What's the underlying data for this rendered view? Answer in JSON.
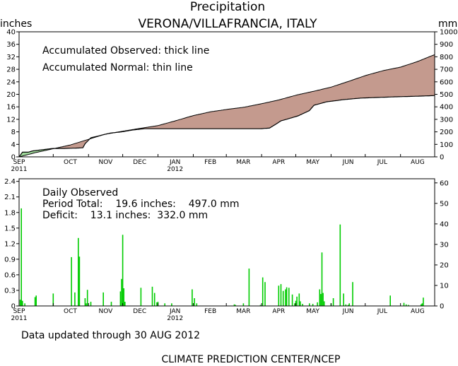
{
  "header": {
    "title": "Precipitation",
    "subtitle": "VERONA/VILLAFRANCIA, ITALY",
    "left_unit": "inches",
    "right_unit": "mm"
  },
  "annotations": {
    "accum_observed": "Accumulated Observed: thick line",
    "accum_normal": "Accumulated Normal: thin line",
    "daily_observed": "Daily Observed",
    "period_total": "Period Total:    19.6 inches:    497.0 mm",
    "deficit": "Deficit:    13.1 inches:  332.0 mm"
  },
  "footer": {
    "updated": "Data updated through 30 AUG 2012",
    "credit": "CLIMATE PREDICTION CENTER/NCEP"
  },
  "colors": {
    "deficit_fill": "#c49a8e",
    "surplus_fill": "#9fd89a",
    "daily_bar": "#00cc00",
    "axis": "#000000"
  },
  "chart_data": [
    {
      "type": "area",
      "title": "Precipitation",
      "subtitle": "VERONA/VILLAFRANCIA, ITALY",
      "ylabel": "inches",
      "y2label": "mm",
      "ylim": [
        0,
        40
      ],
      "y2lim": [
        0,
        1000
      ],
      "yticks": [
        "0",
        "4",
        "8",
        "12",
        "16",
        "20",
        "24",
        "28",
        "32",
        "36",
        "40"
      ],
      "y2ticks": [
        "0",
        "100",
        "200",
        "300",
        "400",
        "500",
        "600",
        "700",
        "800",
        "900",
        "1000"
      ],
      "month_labels": [
        "SEP",
        "OCT",
        "NOV",
        "DEC",
        "JAN",
        "FEB",
        "MAR",
        "APR",
        "MAY",
        "JUN",
        "JUL",
        "AUG"
      ],
      "year_labels": [
        {
          "month_index": 0,
          "text": "2011"
        },
        {
          "month_index": 4,
          "text": "2012"
        }
      ],
      "grid": false,
      "series": [
        {
          "name": "Accumulated Observed",
          "x_day": [
            0,
            3,
            8,
            12,
            30,
            40,
            50,
            56,
            58,
            63,
            80,
            90,
            100,
            110,
            120,
            150,
            180,
            199,
            212,
            220,
            230,
            245,
            255,
            259,
            270,
            285,
            300,
            315,
            330,
            350,
            365
          ],
          "values": [
            0.0,
            1.5,
            1.5,
            1.9,
            2.7,
            2.7,
            2.8,
            2.9,
            4.2,
            6.1,
            7.6,
            8.0,
            8.6,
            9.0,
            9.0,
            9.0,
            9.0,
            9.0,
            9.0,
            9.2,
            11.5,
            13.1,
            14.8,
            16.5,
            17.6,
            18.3,
            18.8,
            19.0,
            19.2,
            19.4,
            19.6
          ]
        },
        {
          "name": "Accumulated Normal",
          "x_day": [
            0,
            15,
            30,
            45,
            60,
            75,
            91,
            106,
            122,
            137,
            153,
            168,
            183,
            198,
            213,
            228,
            244,
            259,
            274,
            289,
            305,
            320,
            335,
            350,
            365
          ],
          "values": [
            0.0,
            1.4,
            2.6,
            3.8,
            5.5,
            7.2,
            8.2,
            9.1,
            10.0,
            11.5,
            13.2,
            14.4,
            15.2,
            15.9,
            17.0,
            18.2,
            19.8,
            21.0,
            22.3,
            24.1,
            26.1,
            27.6,
            28.7,
            30.5,
            32.7
          ]
        }
      ]
    },
    {
      "type": "bar",
      "title": "Daily Observed",
      "ylim": [
        0,
        2.45
      ],
      "y2lim": [
        0,
        62
      ],
      "yticks": [
        "0",
        "0.3",
        "0.6",
        "0.9",
        "1.2",
        "1.5",
        "1.8",
        "2.1",
        "2.4"
      ],
      "y2ticks": [
        "0",
        "10",
        "20",
        "30",
        "40",
        "50",
        "60"
      ],
      "month_labels": [
        "SEP",
        "OCT",
        "NOV",
        "DEC",
        "JAN",
        "FEB",
        "MAR",
        "APR",
        "MAY",
        "JUN",
        "JUL",
        "AUG"
      ],
      "year_labels": [
        {
          "month_index": 0,
          "text": "2011"
        },
        {
          "month_index": 4,
          "text": "2012"
        }
      ],
      "grid": false,
      "x_day": [
        1,
        2,
        3,
        5,
        14,
        15,
        30,
        46,
        49,
        52,
        53,
        58,
        59,
        60,
        63,
        74,
        81,
        89,
        90,
        91,
        92,
        93,
        107,
        117,
        119,
        121,
        122,
        128,
        134,
        152,
        154,
        156,
        189,
        190,
        197,
        202,
        212,
        214,
        216,
        228,
        230,
        232,
        234,
        235,
        237,
        240,
        242,
        243,
        244,
        246,
        247,
        249,
        255,
        258,
        262,
        264,
        265,
        266,
        267,
        268,
        274,
        276,
        282,
        285,
        287,
        289,
        290,
        293,
        326,
        338,
        340,
        342,
        353,
        354,
        355
      ],
      "values": [
        0.12,
        1.88,
        0.1,
        0.05,
        0.17,
        0.2,
        0.24,
        0.94,
        0.26,
        1.31,
        0.95,
        0.15,
        0.05,
        0.31,
        0.08,
        0.26,
        0.08,
        0.28,
        0.52,
        1.37,
        0.34,
        0.08,
        0.35,
        0.37,
        0.25,
        0.07,
        0.08,
        0.05,
        0.05,
        0.32,
        0.15,
        0.05,
        0.03,
        0.02,
        0.05,
        0.72,
        0.02,
        0.55,
        0.46,
        0.39,
        0.42,
        0.29,
        0.32,
        0.36,
        0.35,
        0.22,
        0.05,
        0.1,
        0.18,
        0.24,
        0.09,
        0.04,
        0.05,
        0.04,
        0.07,
        0.32,
        0.23,
        1.03,
        0.25,
        0.09,
        0.05,
        0.15,
        1.57,
        0.24,
        0.03,
        0.02,
        0.05,
        0.46,
        0.2,
        0.06,
        0.03,
        0.02,
        0.03,
        0.05,
        0.16
      ]
    }
  ]
}
